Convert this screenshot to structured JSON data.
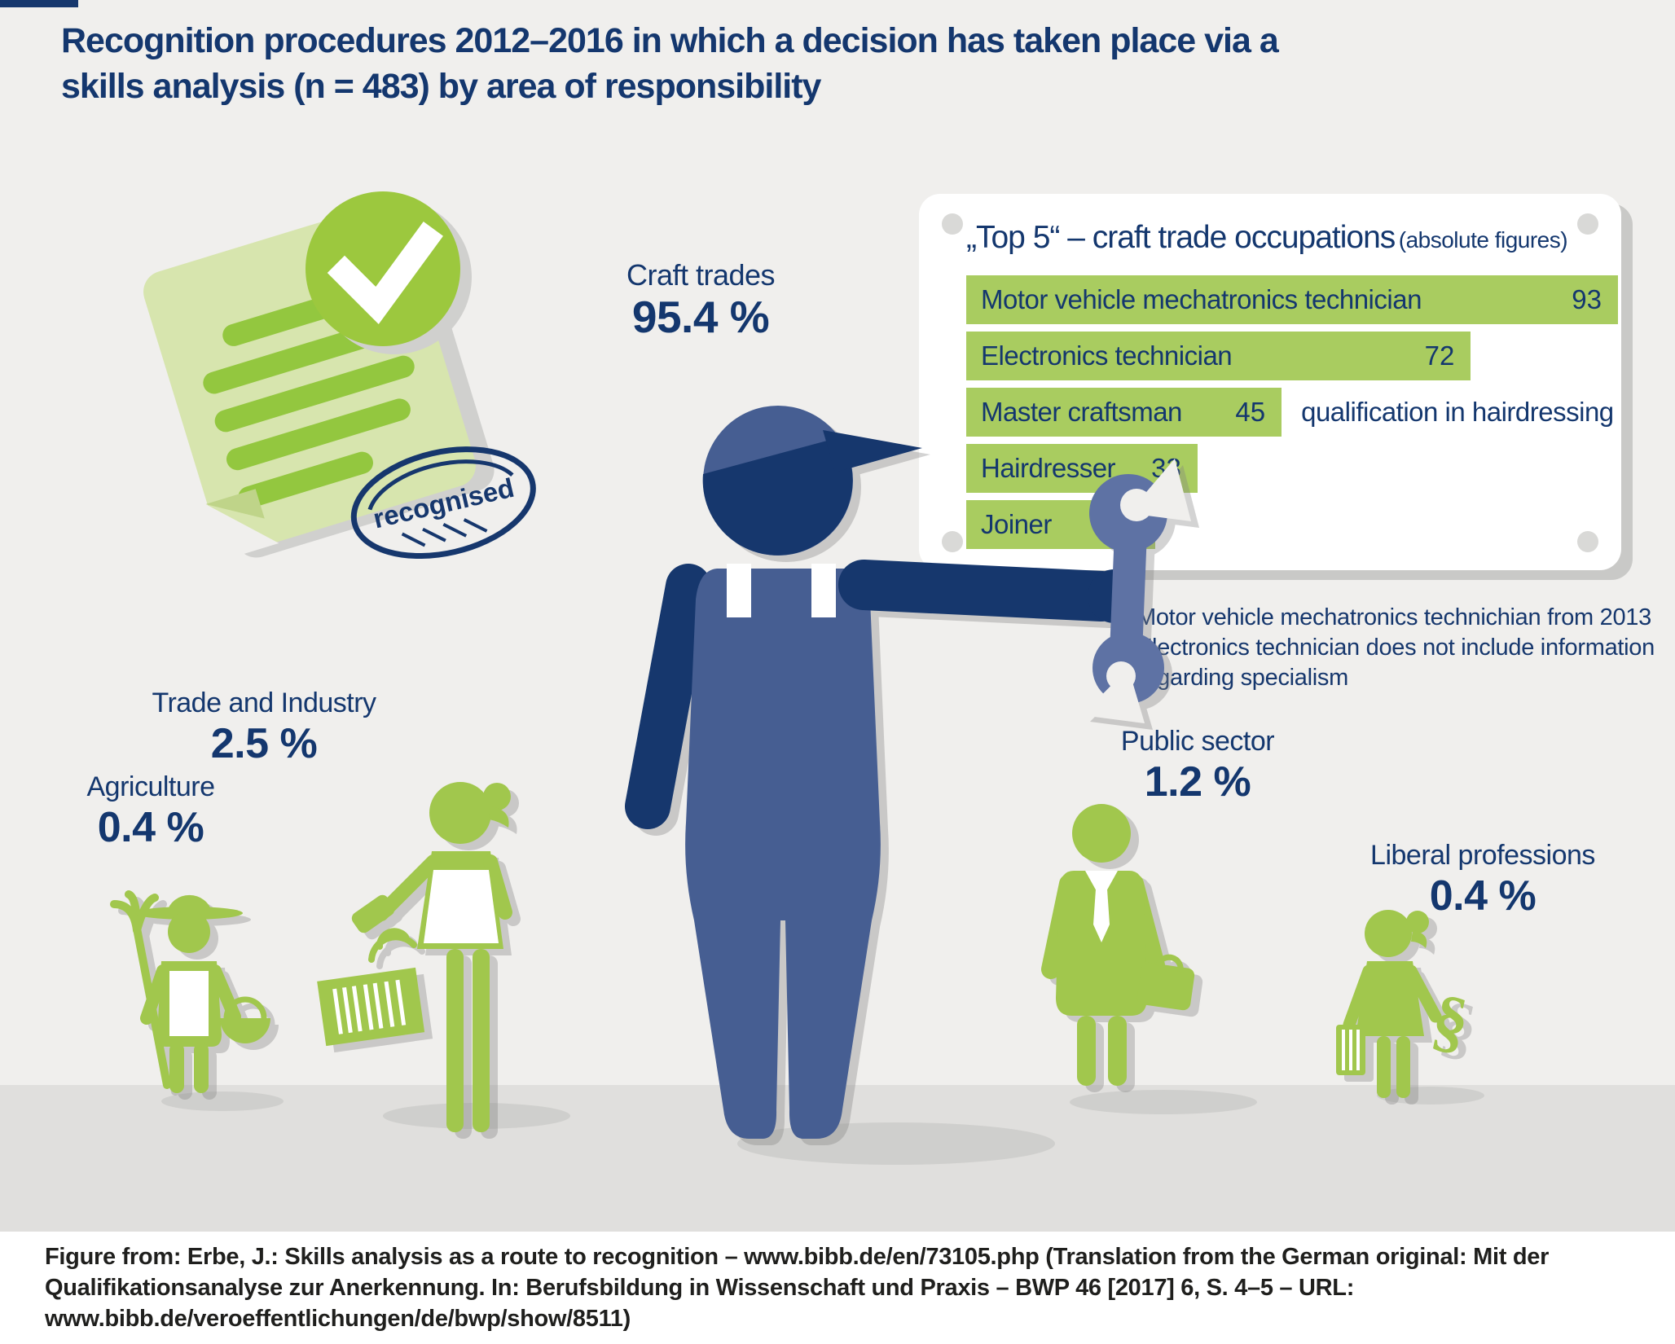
{
  "page": {
    "title_line1": "Recognition procedures 2012–2016 in which a decision has taken place via a",
    "title_line2": "skills analysis (n = 483) by area of responsibility"
  },
  "document_badge": {
    "stamp_text": "recognised"
  },
  "craft_trades": {
    "label": "Craft trades",
    "value": "95.4 %"
  },
  "top5_panel": {
    "title": "„Top 5“ – craft trade occupations",
    "title_suffix": "(absolute figures)",
    "max_value": 93,
    "bars": [
      {
        "label": "Motor vehicle mechatronics technician",
        "value": 93
      },
      {
        "label": "Electronics technician",
        "value": 72
      },
      {
        "label": "Master craftsman",
        "value": 45,
        "after": "qualification in hairdressing"
      },
      {
        "label": "Hairdresser",
        "value": 33
      },
      {
        "label": "Joiner",
        "value": 27
      }
    ]
  },
  "note": {
    "line1": "Motor vehicle mechatronics technichian from 2013",
    "line2": "Electronics technician does not include information",
    "line3": "regarding specialism"
  },
  "areas": {
    "agriculture": {
      "label": "Agriculture",
      "value": "0.4 %"
    },
    "trade_industry": {
      "label": "Trade and Industry",
      "value": "2.5 %"
    },
    "public_sector": {
      "label": "Public sector",
      "value": "1.2 %"
    },
    "liberal_professions": {
      "label": "Liberal professions",
      "value": "0.4 %"
    }
  },
  "footer": {
    "line1": "Figure from: Erbe, J.: Skills analysis as a route to recognition – www.bibb.de/en/73105.php (Translation from the German original: Mit der",
    "line2": "Qualifikationsanalyse zur Anerkennung. In: Berufsbildung in Wissenschaft und Praxis – BWP 46 [2017] 6, S. 4–5 – URL:",
    "line3": "www.bibb.de/veroeffentlichungen/de/bwp/show/8511)"
  },
  "colors": {
    "navy": "#16376d",
    "slate_blue": "#465e92",
    "wrench_blue": "#5e72a4",
    "figure_green": "#a1c74d",
    "bar_green": "#a9cc60",
    "doc_light_green": "#d7e5ae",
    "doc_stripe_green": "#93c73f",
    "background": "#f0efed",
    "floor": "#e0dfdd",
    "panel_white": "#ffffff"
  },
  "chart_data": [
    {
      "type": "bar",
      "orientation": "horizontal",
      "title": "„Top 5“ – craft trade occupations",
      "subtitle": "(absolute figures)",
      "categories": [
        "Motor vehicle mechatronics technician",
        "Electronics technician",
        "Master craftsman",
        "Hairdresser",
        "Joiner"
      ],
      "values": [
        93,
        72,
        45,
        33,
        27
      ],
      "annotations": [
        "",
        "",
        "qualification in hairdressing",
        "",
        ""
      ],
      "xlim": [
        0,
        93
      ],
      "legend_position": "none",
      "grid": false,
      "note": "Motor vehicle mechatronics technichian from 2013 Electronics technician does not include information regarding specialism"
    },
    {
      "type": "pictogram",
      "title": "Recognition procedures 2012–2016 in which a decision has taken place via a skills analysis (n = 483) by area of responsibility",
      "categories": [
        "Craft trades",
        "Trade and Industry",
        "Agriculture",
        "Public sector",
        "Liberal professions"
      ],
      "values": [
        95.4,
        2.5,
        0.4,
        1.2,
        0.4
      ],
      "unit": "%",
      "n": 483
    }
  ]
}
